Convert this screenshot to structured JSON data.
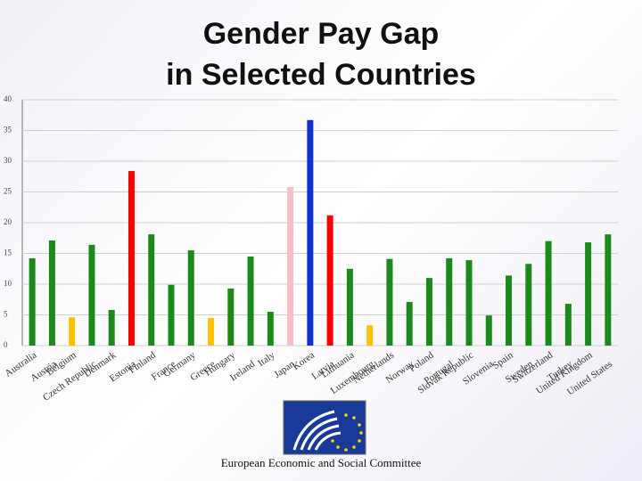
{
  "chart_data": {
    "type": "bar",
    "title": [
      "Gender Pay Gap",
      "in Selected Countries"
    ],
    "categories": [
      "Australia",
      "Austria",
      "Belgium",
      "Czech Republic",
      "Denmark",
      "Estonia",
      "Finland",
      "France",
      "Germany",
      "Greece",
      "Hungary",
      "Ireland",
      "Italy",
      "Japan",
      "Korea",
      "Latvia",
      "Lithuania",
      "Luxembourg",
      "Netherlands",
      "Norway",
      "Poland",
      "Portugal",
      "Slovak Republic",
      "Slovenia",
      "Spain",
      "Sweden",
      "Switzerland",
      "Turkey",
      "United Kingdom",
      "United States"
    ],
    "values": [
      14.2,
      17.1,
      4.6,
      16.4,
      5.8,
      28.4,
      18.1,
      9.9,
      15.5,
      4.5,
      9.3,
      14.5,
      5.5,
      25.8,
      36.7,
      21.2,
      12.5,
      3.3,
      14.1,
      7.1,
      11.0,
      14.2,
      13.9,
      4.9,
      11.4,
      13.3,
      17.0,
      6.8,
      16.8,
      18.1
    ],
    "colors": [
      "#1a8a1a",
      "#1a8a1a",
      "#ffc000",
      "#1a8a1a",
      "#1a8a1a",
      "#ff0000",
      "#1a8a1a",
      "#1a8a1a",
      "#1a8a1a",
      "#ffc000",
      "#1a8a1a",
      "#1a8a1a",
      "#1a8a1a",
      "#f4c0c8",
      "#1030d0",
      "#ff0000",
      "#1a8a1a",
      "#ffc000",
      "#1a8a1a",
      "#1a8a1a",
      "#1a8a1a",
      "#1a8a1a",
      "#1a8a1a",
      "#1a8a1a",
      "#1a8a1a",
      "#1a8a1a",
      "#1a8a1a",
      "#1a8a1a",
      "#1a8a1a",
      "#1a8a1a"
    ],
    "ylim": [
      0,
      40
    ],
    "yticks": [
      0,
      5,
      10,
      15,
      20,
      25,
      30,
      35,
      40
    ],
    "grid": true
  },
  "footer": "European Economic and Social Committee"
}
